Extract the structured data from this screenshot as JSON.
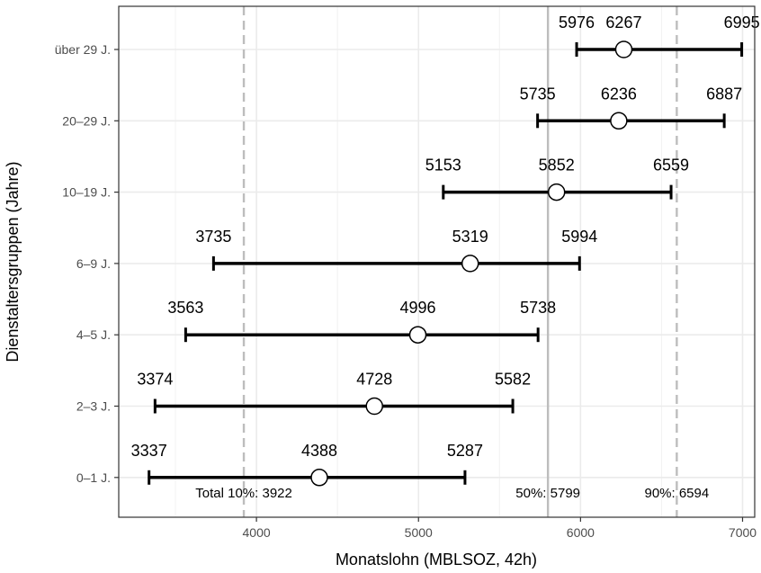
{
  "chart_data": {
    "type": "errorbar",
    "xlabel": "Monatslohn (MBLSOZ, 42h)",
    "ylabel": "Dienstaltersgruppen (Jahre)",
    "xlim": [
      3150,
      7075
    ],
    "xticks": [
      4000,
      5000,
      6000,
      7000
    ],
    "xtick_labels": [
      "4000",
      "5000",
      "6000",
      "7000"
    ],
    "grid": "on",
    "categories": [
      "0–1 J.",
      "2–3 J.",
      "4–5 J.",
      "6–9 J.",
      "10–19 J.",
      "20–29 J.",
      "über 29 J."
    ],
    "series": [
      {
        "category": "0–1 J.",
        "low": 3337,
        "median": 4388,
        "high": 5287,
        "low_label": "3337",
        "median_label": "4388",
        "high_label": "5287"
      },
      {
        "category": "2–3 J.",
        "low": 3374,
        "median": 4728,
        "high": 5582,
        "low_label": "3374",
        "median_label": "4728",
        "high_label": "5582"
      },
      {
        "category": "4–5 J.",
        "low": 3563,
        "median": 4996,
        "high": 5738,
        "low_label": "3563",
        "median_label": "4996",
        "high_label": "5738"
      },
      {
        "category": "6–9 J.",
        "low": 3735,
        "median": 5319,
        "high": 5994,
        "low_label": "3735",
        "median_label": "5319",
        "high_label": "5994"
      },
      {
        "category": "10–19 J.",
        "low": 5153,
        "median": 5852,
        "high": 6559,
        "low_label": "5153",
        "median_label": "5852",
        "high_label": "6559"
      },
      {
        "category": "20–29 J.",
        "low": 5735,
        "median": 6236,
        "high": 6887,
        "low_label": "5735",
        "median_label": "6236",
        "high_label": "6887"
      },
      {
        "category": "über 29 J.",
        "low": 5976,
        "median": 6267,
        "high": 6995,
        "low_label": "5976",
        "median_label": "6267",
        "high_label": "6995"
      }
    ],
    "reference_lines": [
      {
        "value": 3922,
        "style": "dashed",
        "label": "Total 10%: 3922"
      },
      {
        "value": 5799,
        "style": "solid",
        "label": "50%: 5799"
      },
      {
        "value": 6594,
        "style": "dashed",
        "label": "90%: 6594"
      }
    ],
    "colors": {
      "bar": "#000000",
      "marker_fill": "#ffffff",
      "grid": "#ebebeb",
      "reference": "#bdbdbd",
      "text": "#000000",
      "tick_text": "#4d4d4d"
    }
  }
}
